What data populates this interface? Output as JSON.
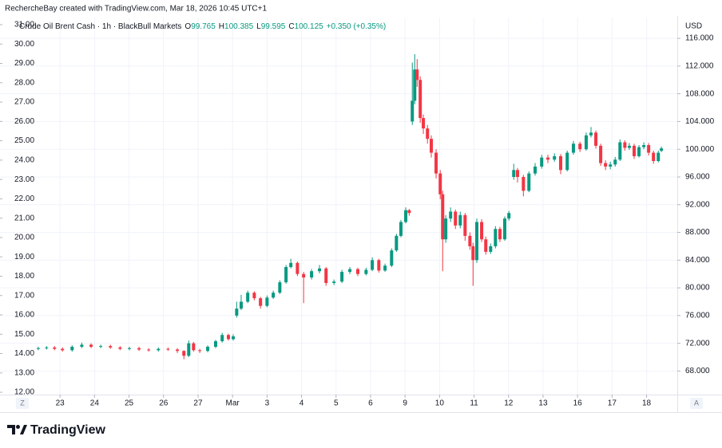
{
  "chart_data": {
    "type": "candlestick",
    "attribution": "RechercheBay created with TradingView.com, Mar 18, 2026 10:45 UTC+1",
    "title": "Crude Oil Brent Cash · 1h · BlackBull Markets",
    "legend_letters": [
      "O",
      "H",
      "L",
      "C"
    ],
    "change_label": "+0.350 (+0.35%)",
    "y_unit": "USD",
    "buttons": [
      "Z",
      "A"
    ],
    "brand": "TradingView",
    "up_color": "#089981",
    "down_color": "#f23645",
    "grid": true,
    "x": [
      -0.63,
      -0.39,
      -0.16,
      0.07,
      0.35,
      0.63,
      0.9,
      1.18,
      1.46,
      1.74,
      2.01,
      2.29,
      2.57,
      2.85,
      3.13,
      3.4,
      3.59,
      3.73,
      3.87,
      4.05,
      4.28,
      4.51,
      4.7,
      4.88,
      5.02,
      5.12,
      5.25,
      5.44,
      5.63,
      5.81,
      6.0,
      6.18,
      6.37,
      6.55,
      6.69,
      6.88,
      7.06,
      7.29,
      7.52,
      7.71,
      7.94,
      8.17,
      8.4,
      8.63,
      8.87,
      9.05,
      9.24,
      9.42,
      9.61,
      9.75,
      9.88,
      10.02,
      10.12,
      10.21,
      10.28,
      10.35,
      10.44,
      10.53,
      10.65,
      10.76,
      10.9,
      11.02,
      11.09,
      11.18,
      11.32,
      11.46,
      11.6,
      11.74,
      11.88,
      11.97,
      12.08,
      12.22,
      12.34,
      12.48,
      12.62,
      12.75,
      12.89,
      13.01,
      13.15,
      13.26,
      13.43,
      13.59,
      13.77,
      13.96,
      14.14,
      14.33,
      14.51,
      14.7,
      14.88,
      15.07,
      15.25,
      15.39,
      15.53,
      15.67,
      15.81,
      15.95,
      16.09,
      16.23,
      16.37,
      16.5,
      16.64,
      16.78,
      16.92,
      17.06,
      17.2,
      17.34,
      17.43
    ],
    "open": [
      71.2,
      71.3,
      71.4,
      71.2,
      71.0,
      71.5,
      71.8,
      71.5,
      71.6,
      71.4,
      71.2,
      71.3,
      71.1,
      71.0,
      71.2,
      71.1,
      70.9,
      70.2,
      72.0,
      71.0,
      70.9,
      71.5,
      72.3,
      73.2,
      72.6,
      76.0,
      77.0,
      78.0,
      79.3,
      78.5,
      77.4,
      78.6,
      79.3,
      80.8,
      83.0,
      83.6,
      82.0,
      81.5,
      82.4,
      82.8,
      80.7,
      80.9,
      82.3,
      82.7,
      82.0,
      82.6,
      84.0,
      82.5,
      83.2,
      85.4,
      87.5,
      89.5,
      91.2,
      104.0,
      107.0,
      111.5,
      110.0,
      104.5,
      103.0,
      101.5,
      99.5,
      96.5,
      93.5,
      87.0,
      90.0,
      91.0,
      89.0,
      90.5,
      87.5,
      86.0,
      84.0,
      89.5,
      87.0,
      85.2,
      86.0,
      88.5,
      87.0,
      90.0,
      96.0,
      97.0,
      96.0,
      94.0,
      96.5,
      97.5,
      98.8,
      98.5,
      99.0,
      97.0,
      99.5,
      100.8,
      100.0,
      102.0,
      102.4,
      100.5,
      98.0,
      97.5,
      97.8,
      98.5,
      101.0,
      100.2,
      100.5,
      99.0,
      100.3,
      100.6,
      99.5,
      98.3,
      99.765
    ],
    "high": [
      71.5,
      71.6,
      71.6,
      71.4,
      71.7,
      72.1,
      72.0,
      71.8,
      71.8,
      71.6,
      71.5,
      71.5,
      71.3,
      71.4,
      71.4,
      71.3,
      71.0,
      72.4,
      72.2,
      71.2,
      71.7,
      72.5,
      73.5,
      73.4,
      73.3,
      78.0,
      79.0,
      79.6,
      79.5,
      78.7,
      78.9,
      79.6,
      81.1,
      83.3,
      84.2,
      83.8,
      82.3,
      82.7,
      83.3,
      83.0,
      81.2,
      82.6,
      83.0,
      82.9,
      82.9,
      84.4,
      84.2,
      83.5,
      85.7,
      87.8,
      89.8,
      91.6,
      91.4,
      112.5,
      113.7,
      113.0,
      110.5,
      105.0,
      103.5,
      102.0,
      100.0,
      97.0,
      94.0,
      90.5,
      91.6,
      91.3,
      91.0,
      90.8,
      88.0,
      86.5,
      90.0,
      89.9,
      87.4,
      86.4,
      88.9,
      88.8,
      90.3,
      91.1,
      97.9,
      97.3,
      96.3,
      96.8,
      98.0,
      99.2,
      99.2,
      99.4,
      99.3,
      99.8,
      101.2,
      101.1,
      102.4,
      103.2,
      102.7,
      100.8,
      98.4,
      98.2,
      98.9,
      101.4,
      101.3,
      100.9,
      100.8,
      100.6,
      101.0,
      100.9,
      99.8,
      99.8,
      100.385
    ],
    "low": [
      71.0,
      71.1,
      71.0,
      70.8,
      70.8,
      71.3,
      71.3,
      71.3,
      71.2,
      71.0,
      71.0,
      70.9,
      70.8,
      70.8,
      70.9,
      70.6,
      69.7,
      70.0,
      70.8,
      70.6,
      70.7,
      71.3,
      72.1,
      72.4,
      72.4,
      75.7,
      76.8,
      77.8,
      78.2,
      77.0,
      77.2,
      78.4,
      79.1,
      80.6,
      82.8,
      81.7,
      77.8,
      81.2,
      82.1,
      80.3,
      80.4,
      80.7,
      82.0,
      81.7,
      81.8,
      82.4,
      82.2,
      82.3,
      83.0,
      85.2,
      87.3,
      89.3,
      90.4,
      103.5,
      106.5,
      109.0,
      103.8,
      102.2,
      100.8,
      98.8,
      95.8,
      92.8,
      82.4,
      86.5,
      89.5,
      88.5,
      88.6,
      86.8,
      85.5,
      80.3,
      83.6,
      86.6,
      84.8,
      84.9,
      85.7,
      86.6,
      86.8,
      89.7,
      95.6,
      95.2,
      93.2,
      93.8,
      96.2,
      97.2,
      98.0,
      98.2,
      96.4,
      96.8,
      99.2,
      99.6,
      99.8,
      101.7,
      100.1,
      97.6,
      97.0,
      97.1,
      97.5,
      98.3,
      99.8,
      99.9,
      98.6,
      98.8,
      100.0,
      99.1,
      97.9,
      98.1,
      99.595
    ],
    "close": [
      71.3,
      71.4,
      71.2,
      71.0,
      71.5,
      71.8,
      71.5,
      71.6,
      71.4,
      71.2,
      71.3,
      71.1,
      71.0,
      71.2,
      71.1,
      70.9,
      70.2,
      72.0,
      71.0,
      70.9,
      71.5,
      72.3,
      73.2,
      72.6,
      73.0,
      77.0,
      78.0,
      79.3,
      78.5,
      77.4,
      78.6,
      79.3,
      80.8,
      83.0,
      83.6,
      82.0,
      81.5,
      82.4,
      82.8,
      80.7,
      80.9,
      82.3,
      82.7,
      82.0,
      82.6,
      84.0,
      82.5,
      83.2,
      85.4,
      87.5,
      89.5,
      91.2,
      90.8,
      107.0,
      111.5,
      110.0,
      104.5,
      103.0,
      101.5,
      99.5,
      96.5,
      93.5,
      87.0,
      90.0,
      91.0,
      89.0,
      90.5,
      87.5,
      86.0,
      84.0,
      89.5,
      87.0,
      85.2,
      86.0,
      88.5,
      87.0,
      90.0,
      90.8,
      97.0,
      96.0,
      94.0,
      96.5,
      97.5,
      98.8,
      98.5,
      99.0,
      97.0,
      99.5,
      100.8,
      100.0,
      102.0,
      102.4,
      100.5,
      98.0,
      97.5,
      97.8,
      98.5,
      101.0,
      100.2,
      100.5,
      99.0,
      100.3,
      100.6,
      99.5,
      98.3,
      99.5,
      100.125
    ],
    "xlim": [
      -1.74,
      17.89
    ],
    "xticks": [
      {
        "value": 0,
        "label": "23"
      },
      {
        "value": 1,
        "label": "24"
      },
      {
        "value": 2,
        "label": "25"
      },
      {
        "value": 3,
        "label": "26"
      },
      {
        "value": 4,
        "label": "27"
      },
      {
        "value": 5,
        "label": "Mar"
      },
      {
        "value": 6,
        "label": "3"
      },
      {
        "value": 7,
        "label": "4"
      },
      {
        "value": 8,
        "label": "5"
      },
      {
        "value": 9,
        "label": "6"
      },
      {
        "value": 10,
        "label": "9"
      },
      {
        "value": 11,
        "label": "10"
      },
      {
        "value": 12,
        "label": "11"
      },
      {
        "value": 13,
        "label": "12"
      },
      {
        "value": 14,
        "label": "13"
      },
      {
        "value": 15,
        "label": "16"
      },
      {
        "value": 16,
        "label": "17"
      },
      {
        "value": 17,
        "label": "18"
      }
    ],
    "ylim": [
      64.6,
      119.0
    ],
    "yticks": [
      {
        "value": 68,
        "label": "68.000"
      },
      {
        "value": 72,
        "label": "72.000"
      },
      {
        "value": 76,
        "label": "76.000"
      },
      {
        "value": 80,
        "label": "80.000"
      },
      {
        "value": 84,
        "label": "84.000"
      },
      {
        "value": 88,
        "label": "88.000"
      },
      {
        "value": 92,
        "label": "92.000"
      },
      {
        "value": 96,
        "label": "96.000"
      },
      {
        "value": 100,
        "label": "100.000"
      },
      {
        "value": 104,
        "label": "104.000"
      },
      {
        "value": 108,
        "label": "108.000"
      },
      {
        "value": 112,
        "label": "112.000"
      },
      {
        "value": 116,
        "label": "116.000"
      }
    ],
    "y2lim": [
      11.88,
      31.37
    ],
    "y2ticks": [
      {
        "value": 12,
        "label": "12.00"
      },
      {
        "value": 13,
        "label": "13.00"
      },
      {
        "value": 14,
        "label": "14.00"
      },
      {
        "value": 15,
        "label": "15.00"
      },
      {
        "value": 16,
        "label": "16.00"
      },
      {
        "value": 17,
        "label": "17.00"
      },
      {
        "value": 18,
        "label": "18.00"
      },
      {
        "value": 19,
        "label": "19.00"
      },
      {
        "value": 20,
        "label": "20.00"
      },
      {
        "value": 21,
        "label": "21.00"
      },
      {
        "value": 22,
        "label": "22.00"
      },
      {
        "value": 23,
        "label": "23.00"
      },
      {
        "value": 24,
        "label": "24.00"
      },
      {
        "value": 25,
        "label": "25.00"
      },
      {
        "value": 26,
        "label": "26.00"
      },
      {
        "value": 27,
        "label": "27.00"
      },
      {
        "value": 28,
        "label": "28.00"
      },
      {
        "value": 29,
        "label": "29.00"
      },
      {
        "value": 30,
        "label": "30.00"
      },
      {
        "value": 31,
        "label": "31.00"
      }
    ]
  }
}
